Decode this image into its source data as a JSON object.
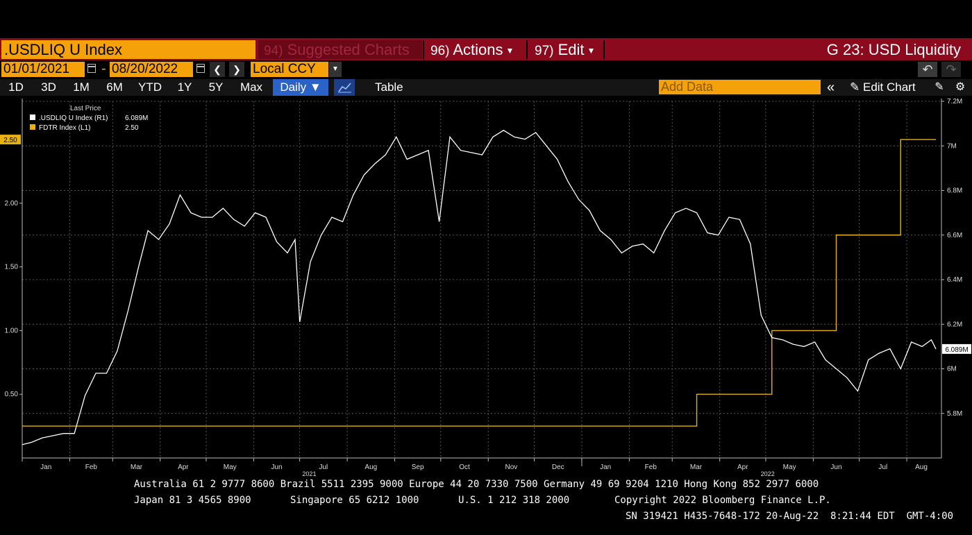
{
  "header": {
    "ticker": ".USDLIQ U Index",
    "menu_suggested_num": "94)",
    "menu_suggested": "Suggested Charts",
    "menu_actions_num": "96)",
    "menu_actions": "Actions",
    "menu_edit_num": "97)",
    "menu_edit": "Edit",
    "chart_title": "G 23: USD Liquidity"
  },
  "daterange": {
    "start": "01/01/2021",
    "separator": "-",
    "end": "08/20/2022",
    "currency": "Local CCY"
  },
  "toolbar": {
    "ranges": [
      "1D",
      "3D",
      "1M",
      "6M",
      "YTD",
      "1Y",
      "5Y",
      "Max"
    ],
    "frequency": "Daily",
    "table": "Table",
    "add_data_placeholder": "Add Data",
    "edit_chart": "Edit Chart"
  },
  "legend": {
    "header": "Last Price",
    "items": [
      {
        "name": ".USDLIQ U Index  (R1)",
        "value": "6.089M",
        "color": "#ffffff"
      },
      {
        "name": "FDTR Index  (L1)",
        "value": "2.50",
        "color": "#e8b10c"
      }
    ]
  },
  "chart_data": {
    "type": "line",
    "left_axis": {
      "ticks": [
        "0.50",
        "1.00",
        "1.50",
        "2.00"
      ],
      "range": [
        0.0,
        2.8
      ]
    },
    "right_axis": {
      "ticks": [
        "5.8M",
        "6M",
        "6.2M",
        "6.4M",
        "6.6M",
        "6.8M",
        "7M",
        "7.2M"
      ],
      "range": [
        5.6,
        7.2
      ]
    },
    "x_months": [
      "Jan",
      "Feb",
      "Mar",
      "Apr",
      "May",
      "Jun",
      "Jul",
      "Aug",
      "Sep",
      "Oct",
      "Nov",
      "Dec",
      "Jan",
      "Feb",
      "Mar",
      "Apr",
      "May",
      "Jun",
      "Jul",
      "Aug"
    ],
    "x_years": [
      "2021",
      "2022"
    ],
    "last_badges": {
      "left": "2.50",
      "right": "6.089M"
    },
    "series": [
      {
        "name": "FDTR Index",
        "axis": "left",
        "color": "#e8b10c",
        "step_points": [
          [
            "2021-01-01",
            0.25
          ],
          [
            "2022-03-17",
            0.5
          ],
          [
            "2022-05-05",
            1.0
          ],
          [
            "2022-06-16",
            1.75
          ],
          [
            "2022-07-28",
            2.5
          ],
          [
            "2022-08-20",
            2.5
          ]
        ]
      },
      {
        "name": ".USDLIQ U Index",
        "axis": "right",
        "color": "#ffffff",
        "unit": "M",
        "points": [
          [
            "2021-01-01",
            5.66
          ],
          [
            "2021-01-07",
            5.67
          ],
          [
            "2021-01-14",
            5.69
          ],
          [
            "2021-01-21",
            5.7
          ],
          [
            "2021-01-28",
            5.71
          ],
          [
            "2021-02-04",
            5.71
          ],
          [
            "2021-02-11",
            5.88
          ],
          [
            "2021-02-18",
            5.98
          ],
          [
            "2021-02-25",
            5.98
          ],
          [
            "2021-03-04",
            6.08
          ],
          [
            "2021-03-11",
            6.26
          ],
          [
            "2021-03-18",
            6.46
          ],
          [
            "2021-03-24",
            6.62
          ],
          [
            "2021-03-31",
            6.58
          ],
          [
            "2021-04-07",
            6.65
          ],
          [
            "2021-04-14",
            6.78
          ],
          [
            "2021-04-21",
            6.7
          ],
          [
            "2021-04-28",
            6.68
          ],
          [
            "2021-05-05",
            6.68
          ],
          [
            "2021-05-12",
            6.72
          ],
          [
            "2021-05-19",
            6.67
          ],
          [
            "2021-05-26",
            6.64
          ],
          [
            "2021-06-02",
            6.7
          ],
          [
            "2021-06-09",
            6.68
          ],
          [
            "2021-06-16",
            6.57
          ],
          [
            "2021-06-23",
            6.52
          ],
          [
            "2021-06-28",
            6.58
          ],
          [
            "2021-07-01",
            6.21
          ],
          [
            "2021-07-08",
            6.48
          ],
          [
            "2021-07-15",
            6.6
          ],
          [
            "2021-07-22",
            6.68
          ],
          [
            "2021-07-29",
            6.66
          ],
          [
            "2021-08-05",
            6.78
          ],
          [
            "2021-08-12",
            6.87
          ],
          [
            "2021-08-19",
            6.92
          ],
          [
            "2021-08-26",
            6.96
          ],
          [
            "2021-09-02",
            7.04
          ],
          [
            "2021-09-09",
            6.94
          ],
          [
            "2021-09-16",
            6.96
          ],
          [
            "2021-09-23",
            6.98
          ],
          [
            "2021-09-30",
            6.66
          ],
          [
            "2021-10-07",
            7.04
          ],
          [
            "2021-10-14",
            6.98
          ],
          [
            "2021-10-21",
            6.97
          ],
          [
            "2021-10-28",
            6.96
          ],
          [
            "2021-11-04",
            7.04
          ],
          [
            "2021-11-11",
            7.07
          ],
          [
            "2021-11-18",
            7.04
          ],
          [
            "2021-11-25",
            7.03
          ],
          [
            "2021-12-02",
            7.06
          ],
          [
            "2021-12-09",
            7.0
          ],
          [
            "2021-12-16",
            6.94
          ],
          [
            "2021-12-23",
            6.84
          ],
          [
            "2021-12-30",
            6.76
          ],
          [
            "2022-01-06",
            6.71
          ],
          [
            "2022-01-13",
            6.62
          ],
          [
            "2022-01-20",
            6.58
          ],
          [
            "2022-01-27",
            6.52
          ],
          [
            "2022-02-03",
            6.55
          ],
          [
            "2022-02-10",
            6.56
          ],
          [
            "2022-02-17",
            6.52
          ],
          [
            "2022-02-24",
            6.62
          ],
          [
            "2022-03-03",
            6.7
          ],
          [
            "2022-03-10",
            6.72
          ],
          [
            "2022-03-17",
            6.7
          ],
          [
            "2022-03-24",
            6.61
          ],
          [
            "2022-03-31",
            6.6
          ],
          [
            "2022-04-07",
            6.68
          ],
          [
            "2022-04-14",
            6.67
          ],
          [
            "2022-04-21",
            6.56
          ],
          [
            "2022-04-28",
            6.24
          ],
          [
            "2022-05-05",
            6.14
          ],
          [
            "2022-05-12",
            6.13
          ],
          [
            "2022-05-19",
            6.11
          ],
          [
            "2022-05-26",
            6.1
          ],
          [
            "2022-06-02",
            6.12
          ],
          [
            "2022-06-09",
            6.04
          ],
          [
            "2022-06-16",
            6.0
          ],
          [
            "2022-06-23",
            5.96
          ],
          [
            "2022-06-30",
            5.9
          ],
          [
            "2022-07-07",
            6.04
          ],
          [
            "2022-07-14",
            6.07
          ],
          [
            "2022-07-21",
            6.09
          ],
          [
            "2022-07-28",
            6.0
          ],
          [
            "2022-08-04",
            6.12
          ],
          [
            "2022-08-11",
            6.1
          ],
          [
            "2022-08-17",
            6.13
          ],
          [
            "2022-08-20",
            6.089
          ]
        ]
      }
    ]
  },
  "footer": {
    "contacts1": "Australia 61 2 9777 8600 Brazil 5511 2395 9000 Europe 44 20 7330 7500 Germany 49 69 9204 1210 Hong Kong 852 2977 6000",
    "contacts2_a": "Japan 81 3 4565 8900",
    "contacts2_b": "Singapore 65 6212 1000",
    "contacts2_c": "U.S. 1 212 318 2000",
    "contacts2_d": "Copyright 2022 Bloomberg Finance L.P.",
    "serial": "SN 319421 H435-7648-172 20-Aug-22  8:21:44 EDT  GMT-4:00"
  }
}
